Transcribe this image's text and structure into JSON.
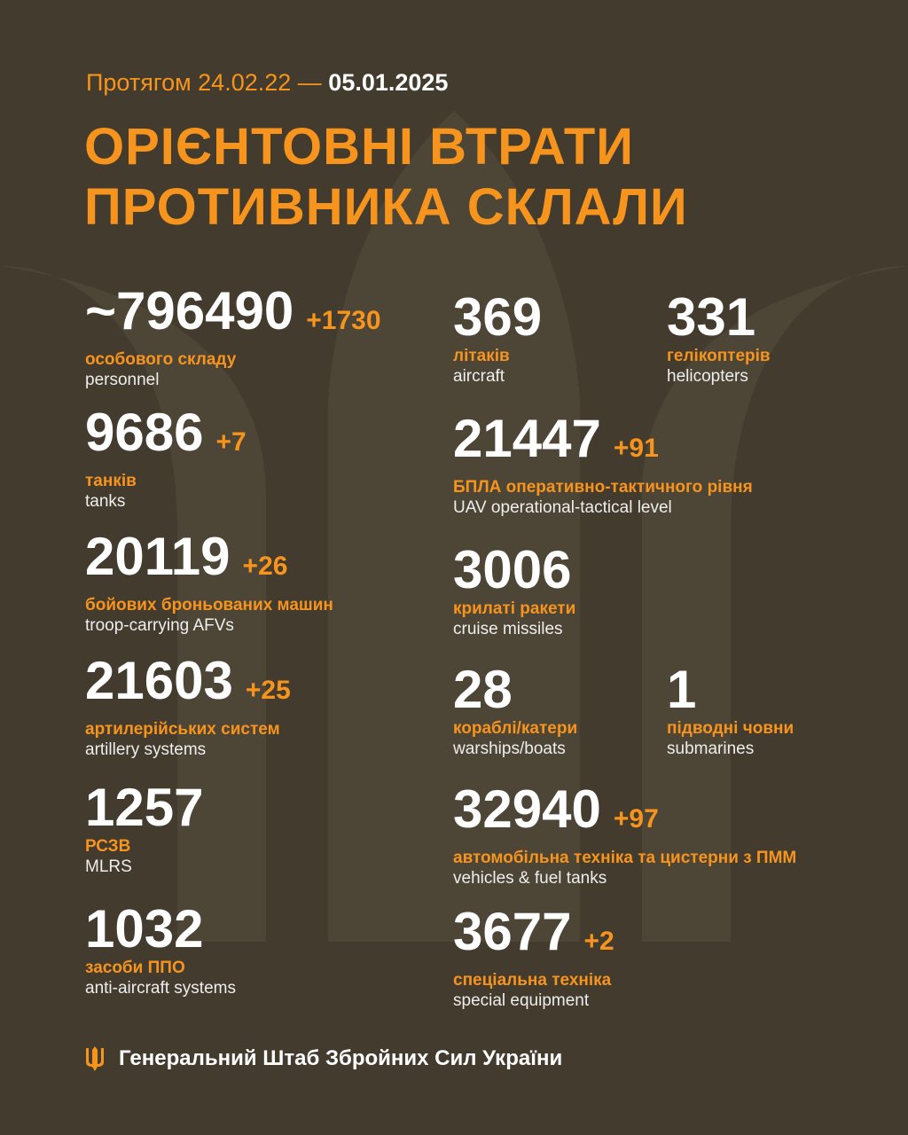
{
  "header": {
    "period_prefix": "Протягом 24.02.22 —",
    "period_end": "05.01.2025",
    "title_line1": "ОРІЄНТОВНІ ВТРАТИ",
    "title_line2": "ПРОТИВНИКА СКЛАЛИ"
  },
  "colors": {
    "background": "#433b2e",
    "accent": "#f7941d",
    "text": "#ffffff"
  },
  "items": [
    {
      "value": "~796490",
      "delta": "+1730",
      "ua": "особового складу",
      "en": "personnel"
    },
    {
      "value": "9686",
      "delta": "+7",
      "ua": "танків",
      "en": "tanks"
    },
    {
      "value": "20119",
      "delta": "+26",
      "ua": "бойових броньованих машин",
      "en": "troop-carrying AFVs"
    },
    {
      "value": "21603",
      "delta": "+25",
      "ua": "артилерійських систем",
      "en": "artillery systems"
    },
    {
      "value": "1257",
      "delta": "",
      "ua": "РСЗВ",
      "en": "MLRS"
    },
    {
      "value": "1032",
      "delta": "",
      "ua": "засоби ППО",
      "en": "anti-aircraft systems"
    },
    {
      "value": "369",
      "delta": "",
      "ua": "літаків",
      "en": "aircraft"
    },
    {
      "value": "331",
      "delta": "",
      "ua": "гелікоптерів",
      "en": "helicopters"
    },
    {
      "value": "21447",
      "delta": "+91",
      "ua": "БПЛА оперативно-тактичного рівня",
      "en": "UAV operational-tactical level"
    },
    {
      "value": "3006",
      "delta": "",
      "ua": "крилаті ракети",
      "en": "cruise missiles"
    },
    {
      "value": "28",
      "delta": "",
      "ua": "кораблі/катери",
      "en": "warships/boats"
    },
    {
      "value": "1",
      "delta": "",
      "ua": "підводні човни",
      "en": "submarines"
    },
    {
      "value": "32940",
      "delta": "+97",
      "ua": "автомобільна техніка та цистерни з ПММ",
      "en": "vehicles & fuel tanks"
    },
    {
      "value": "3677",
      "delta": "+2",
      "ua": "спеціальна техніка",
      "en": "special equipment"
    }
  ],
  "footer": {
    "icon": "trident-icon",
    "text": "Генеральний Штаб Збройних Сил України"
  }
}
